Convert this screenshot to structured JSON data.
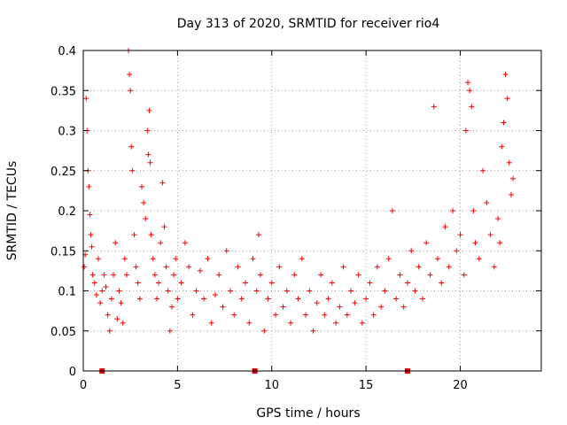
{
  "chart_data": {
    "type": "scatter",
    "title": "Day 313 of 2020, SRMTID for receiver rio4",
    "xlabel": "GPS time / hours",
    "ylabel": "SRMTID / TECUs",
    "xlim": [
      0,
      24.3
    ],
    "ylim": [
      0,
      0.4
    ],
    "x_ticks": [
      0,
      5,
      10,
      15,
      20
    ],
    "x_tick_labels": [
      "0",
      "5",
      "10",
      "15",
      "20"
    ],
    "y_ticks": [
      0,
      0.05,
      0.1,
      0.15,
      0.2,
      0.25,
      0.3,
      0.35,
      0.4
    ],
    "y_tick_labels": [
      "0",
      "0.05",
      "0.1",
      "0.15",
      "0.2",
      "0.25",
      "0.3",
      "0.35",
      "0.4"
    ],
    "grid": true,
    "marker": "+",
    "color": "#ff0000",
    "baseline_markers_x": [
      1.0,
      9.1,
      17.2
    ],
    "series": [
      {
        "name": "SRMTID",
        "points": [
          [
            0.05,
            0.13
          ],
          [
            0.1,
            0.145
          ],
          [
            0.15,
            0.34
          ],
          [
            0.2,
            0.3
          ],
          [
            0.25,
            0.25
          ],
          [
            0.3,
            0.23
          ],
          [
            0.35,
            0.195
          ],
          [
            0.4,
            0.17
          ],
          [
            0.45,
            0.155
          ],
          [
            0.5,
            0.12
          ],
          [
            0.6,
            0.11
          ],
          [
            0.7,
            0.095
          ],
          [
            0.8,
            0.14
          ],
          [
            0.9,
            0.085
          ],
          [
            1.0,
            0.1
          ],
          [
            1.1,
            0.12
          ],
          [
            1.2,
            0.105
          ],
          [
            1.3,
            0.07
          ],
          [
            1.4,
            0.05
          ],
          [
            1.5,
            0.09
          ],
          [
            1.6,
            0.12
          ],
          [
            1.7,
            0.16
          ],
          [
            1.8,
            0.065
          ],
          [
            1.9,
            0.1
          ],
          [
            2.0,
            0.085
          ],
          [
            2.1,
            0.06
          ],
          [
            2.2,
            0.14
          ],
          [
            2.3,
            0.12
          ],
          [
            2.4,
            0.4
          ],
          [
            2.45,
            0.37
          ],
          [
            2.5,
            0.35
          ],
          [
            2.55,
            0.28
          ],
          [
            2.6,
            0.25
          ],
          [
            2.7,
            0.17
          ],
          [
            2.8,
            0.13
          ],
          [
            2.9,
            0.11
          ],
          [
            3.0,
            0.09
          ],
          [
            3.1,
            0.23
          ],
          [
            3.2,
            0.21
          ],
          [
            3.3,
            0.19
          ],
          [
            3.4,
            0.3
          ],
          [
            3.45,
            0.27
          ],
          [
            3.5,
            0.325
          ],
          [
            3.55,
            0.26
          ],
          [
            3.6,
            0.17
          ],
          [
            3.7,
            0.14
          ],
          [
            3.8,
            0.12
          ],
          [
            3.9,
            0.09
          ],
          [
            4.0,
            0.11
          ],
          [
            4.1,
            0.16
          ],
          [
            4.2,
            0.235
          ],
          [
            4.3,
            0.18
          ],
          [
            4.4,
            0.13
          ],
          [
            4.5,
            0.1
          ],
          [
            4.6,
            0.05
          ],
          [
            4.7,
            0.08
          ],
          [
            4.8,
            0.12
          ],
          [
            4.9,
            0.14
          ],
          [
            5.0,
            0.09
          ],
          [
            5.2,
            0.11
          ],
          [
            5.4,
            0.16
          ],
          [
            5.6,
            0.13
          ],
          [
            5.8,
            0.07
          ],
          [
            6.0,
            0.1
          ],
          [
            6.2,
            0.125
          ],
          [
            6.4,
            0.09
          ],
          [
            6.6,
            0.14
          ],
          [
            6.8,
            0.06
          ],
          [
            7.0,
            0.095
          ],
          [
            7.2,
            0.12
          ],
          [
            7.4,
            0.08
          ],
          [
            7.6,
            0.15
          ],
          [
            7.8,
            0.1
          ],
          [
            8.0,
            0.07
          ],
          [
            8.2,
            0.13
          ],
          [
            8.4,
            0.09
          ],
          [
            8.6,
            0.11
          ],
          [
            8.8,
            0.06
          ],
          [
            9.0,
            0.14
          ],
          [
            9.2,
            0.1
          ],
          [
            9.3,
            0.17
          ],
          [
            9.4,
            0.12
          ],
          [
            9.6,
            0.05
          ],
          [
            9.8,
            0.09
          ],
          [
            10.0,
            0.11
          ],
          [
            10.2,
            0.07
          ],
          [
            10.4,
            0.13
          ],
          [
            10.6,
            0.08
          ],
          [
            10.8,
            0.1
          ],
          [
            11.0,
            0.06
          ],
          [
            11.2,
            0.12
          ],
          [
            11.4,
            0.09
          ],
          [
            11.6,
            0.14
          ],
          [
            11.8,
            0.07
          ],
          [
            12.0,
            0.1
          ],
          [
            12.2,
            0.05
          ],
          [
            12.4,
            0.085
          ],
          [
            12.6,
            0.12
          ],
          [
            12.8,
            0.07
          ],
          [
            13.0,
            0.09
          ],
          [
            13.2,
            0.11
          ],
          [
            13.4,
            0.06
          ],
          [
            13.6,
            0.08
          ],
          [
            13.8,
            0.13
          ],
          [
            14.0,
            0.07
          ],
          [
            14.2,
            0.1
          ],
          [
            14.4,
            0.085
          ],
          [
            14.6,
            0.12
          ],
          [
            14.8,
            0.06
          ],
          [
            15.0,
            0.09
          ],
          [
            15.2,
            0.11
          ],
          [
            15.4,
            0.07
          ],
          [
            15.6,
            0.13
          ],
          [
            15.8,
            0.08
          ],
          [
            16.0,
            0.1
          ],
          [
            16.2,
            0.14
          ],
          [
            16.4,
            0.2
          ],
          [
            16.6,
            0.09
          ],
          [
            16.8,
            0.12
          ],
          [
            17.0,
            0.08
          ],
          [
            17.2,
            0.11
          ],
          [
            17.4,
            0.15
          ],
          [
            17.6,
            0.1
          ],
          [
            17.8,
            0.13
          ],
          [
            18.0,
            0.09
          ],
          [
            18.2,
            0.16
          ],
          [
            18.4,
            0.12
          ],
          [
            18.6,
            0.33
          ],
          [
            18.8,
            0.14
          ],
          [
            19.0,
            0.11
          ],
          [
            19.2,
            0.18
          ],
          [
            19.4,
            0.13
          ],
          [
            19.6,
            0.2
          ],
          [
            19.8,
            0.15
          ],
          [
            20.0,
            0.17
          ],
          [
            20.2,
            0.12
          ],
          [
            20.3,
            0.3
          ],
          [
            20.4,
            0.36
          ],
          [
            20.5,
            0.35
          ],
          [
            20.6,
            0.33
          ],
          [
            20.7,
            0.2
          ],
          [
            20.8,
            0.16
          ],
          [
            21.0,
            0.14
          ],
          [
            21.2,
            0.25
          ],
          [
            21.4,
            0.21
          ],
          [
            21.6,
            0.17
          ],
          [
            21.8,
            0.13
          ],
          [
            22.0,
            0.19
          ],
          [
            22.1,
            0.16
          ],
          [
            22.2,
            0.28
          ],
          [
            22.3,
            0.31
          ],
          [
            22.4,
            0.37
          ],
          [
            22.5,
            0.34
          ],
          [
            22.6,
            0.26
          ],
          [
            22.7,
            0.22
          ],
          [
            22.8,
            0.24
          ]
        ]
      }
    ]
  }
}
